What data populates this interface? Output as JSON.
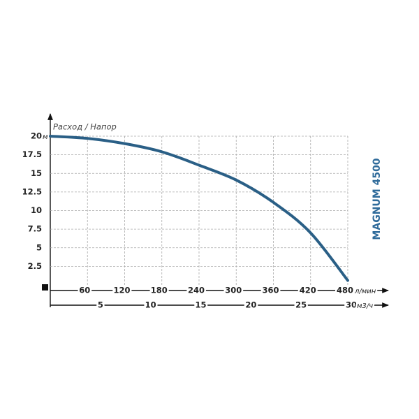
{
  "chart_data": {
    "type": "line",
    "title": "MAGNUM 4500",
    "axis_label": "Расход / Напор",
    "y_unit": "м",
    "x_unit": "л/мин",
    "x2_unit": "м3/ч",
    "x": [
      0,
      60,
      120,
      180,
      240,
      300,
      360,
      420,
      480
    ],
    "series": [
      {
        "color": "#2a5f86",
        "values": [
          20,
          19.7,
          19,
          17.9,
          16.1,
          14.1,
          11.1,
          7.0,
          0.6
        ]
      }
    ],
    "xlim": [
      0,
      480
    ],
    "xticks": [
      60,
      120,
      180,
      240,
      300,
      360,
      420,
      480
    ],
    "x2lim": [
      0,
      30
    ],
    "x2ticks": [
      5,
      10,
      15,
      20,
      25,
      30
    ],
    "ylim": [
      0,
      20
    ],
    "yticks": [
      2.5,
      5,
      7.5,
      10,
      12.5,
      15,
      17.5,
      20
    ],
    "grid": true
  }
}
